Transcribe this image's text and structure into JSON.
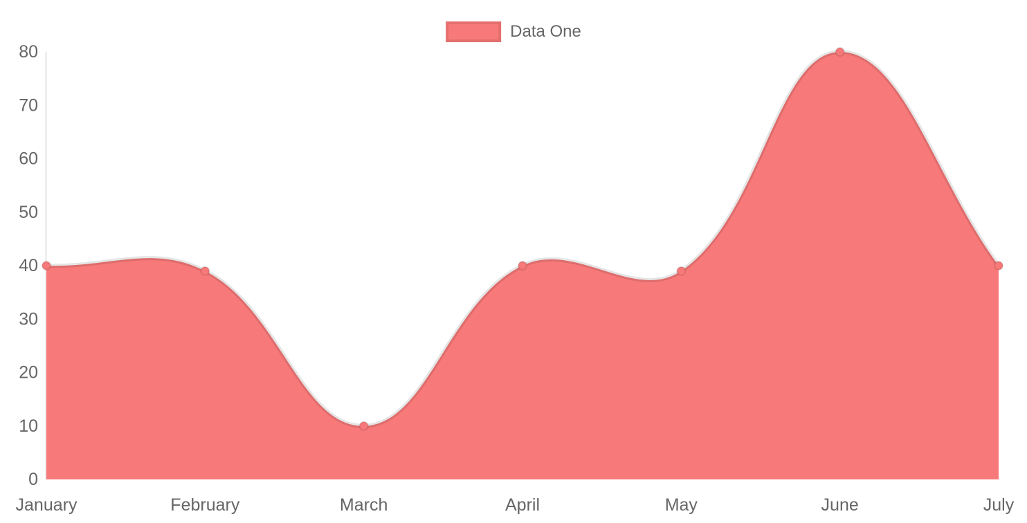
{
  "chart_data": {
    "type": "area",
    "title": "",
    "categories": [
      "January",
      "February",
      "March",
      "April",
      "May",
      "June",
      "July"
    ],
    "series": [
      {
        "name": "Data One",
        "values": [
          40,
          39,
          10,
          40,
          39,
          80,
          40
        ]
      }
    ],
    "xlabel": "",
    "ylabel": "",
    "ylim": [
      0,
      80
    ],
    "y_ticks": [
      0,
      10,
      20,
      30,
      40,
      50,
      60,
      70,
      80
    ],
    "grid": "off",
    "axis_line": "y-only",
    "legend_position": "top-center",
    "line_style": "smooth-bezier",
    "colors": {
      "fill": "#f87979",
      "point_fill": "#f87979",
      "line_border": "rgba(0,0,0,0.10)",
      "axis_line": "rgba(0,0,0,0.10)",
      "tick_label": "#666666",
      "legend_text": "#666666",
      "legend_box_border": "rgba(0,0,0,0.08)",
      "background": "#ffffff"
    }
  }
}
